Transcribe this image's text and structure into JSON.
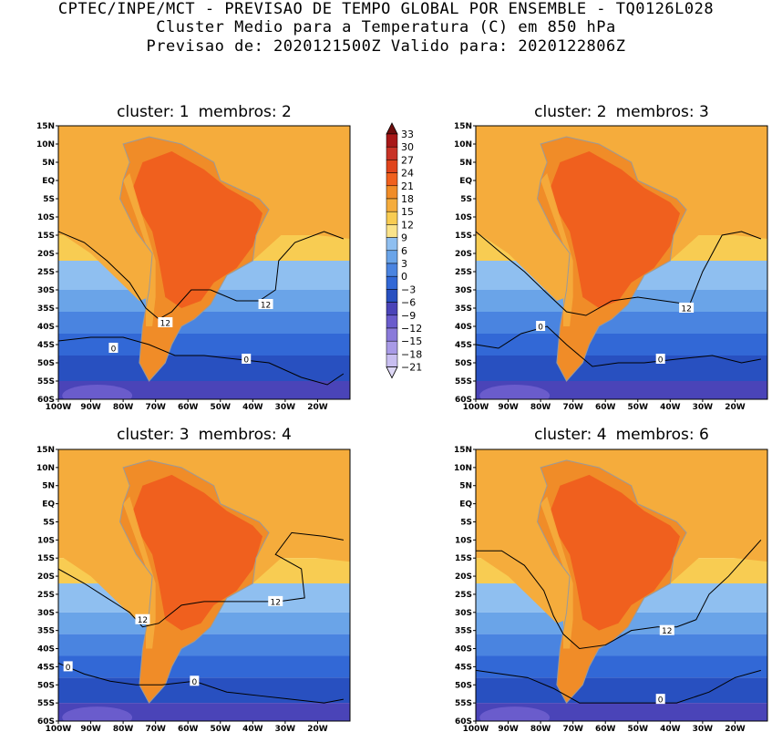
{
  "header": {
    "line1": "CPTEC/INPE/MCT - PREVISAO DE TEMPO GLOBAL POR ENSEMBLE - TQ0126L028",
    "line2": "Cluster Medio para a Temperatura (C) em 850 hPa",
    "line3": "Previsao de: 2020121500Z   Valido para: 2020122806Z"
  },
  "chart_data": {
    "type": "heatmap",
    "variable": "Temperatura (C) em 850 hPa",
    "xlim": [
      -100,
      -10
    ],
    "ylim": [
      -60,
      15
    ],
    "x_ticks": [
      {
        "value": -100,
        "label": "100W"
      },
      {
        "value": -90,
        "label": "90W"
      },
      {
        "value": -80,
        "label": "80W"
      },
      {
        "value": -70,
        "label": "70W"
      },
      {
        "value": -60,
        "label": "60W"
      },
      {
        "value": -50,
        "label": "50W"
      },
      {
        "value": -40,
        "label": "40W"
      },
      {
        "value": -30,
        "label": "30W"
      },
      {
        "value": -20,
        "label": "20W"
      }
    ],
    "y_ticks": [
      {
        "value": 15,
        "label": "15N"
      },
      {
        "value": 10,
        "label": "10N"
      },
      {
        "value": 5,
        "label": "5N"
      },
      {
        "value": 0,
        "label": "EQ"
      },
      {
        "value": -5,
        "label": "5S"
      },
      {
        "value": -10,
        "label": "10S"
      },
      {
        "value": -15,
        "label": "15S"
      },
      {
        "value": -20,
        "label": "20S"
      },
      {
        "value": -25,
        "label": "25S"
      },
      {
        "value": -30,
        "label": "30S"
      },
      {
        "value": -35,
        "label": "35S"
      },
      {
        "value": -40,
        "label": "40S"
      },
      {
        "value": -45,
        "label": "45S"
      },
      {
        "value": -50,
        "label": "50S"
      },
      {
        "value": -55,
        "label": "55S"
      },
      {
        "value": -60,
        "label": "60S"
      }
    ],
    "colorbar": {
      "labels": [
        "33",
        "30",
        "27",
        "24",
        "21",
        "18",
        "15",
        "12",
        "9",
        "6",
        "3",
        "0",
        "-3",
        "-6",
        "-9",
        "-12",
        "-15",
        "-18",
        "-21"
      ],
      "colors": [
        "#6e0d0d",
        "#a81818",
        "#c83226",
        "#e0441c",
        "#f0601e",
        "#f08c28",
        "#f5ac3c",
        "#f8cc52",
        "#fae38a",
        "#8fbff0",
        "#6aa4e8",
        "#4a84e0",
        "#3268d6",
        "#2850c0",
        "#4a44b8",
        "#6a5ccc",
        "#8a7ada",
        "#a89ae6",
        "#c8bef0",
        "#ded8f6"
      ]
    },
    "panels": [
      {
        "cluster": "1",
        "membros": "2",
        "contours": [
          {
            "level": 12,
            "label": "12",
            "points": [
              [
                -100,
                -14
              ],
              [
                -92,
                -17
              ],
              [
                -85,
                -22
              ],
              [
                -78,
                -28
              ],
              [
                -73,
                -35
              ],
              [
                -69,
                -38
              ],
              [
                -65,
                -36
              ],
              [
                -59,
                -30
              ],
              [
                -53,
                -30
              ],
              [
                -45,
                -33
              ],
              [
                -38,
                -33
              ],
              [
                -33,
                -30
              ],
              [
                -32,
                -22
              ],
              [
                -27,
                -17
              ],
              [
                -18,
                -14
              ],
              [
                -12,
                -16
              ]
            ]
          },
          {
            "level": 0,
            "label": "0",
            "points": [
              [
                -100,
                -44
              ],
              [
                -90,
                -43
              ],
              [
                -80,
                -43
              ],
              [
                -72,
                -45
              ],
              [
                -64,
                -48
              ],
              [
                -55,
                -48
              ],
              [
                -45,
                -49
              ],
              [
                -35,
                -50
              ],
              [
                -25,
                -54
              ],
              [
                -17,
                -56
              ],
              [
                -12,
                -53
              ]
            ]
          }
        ],
        "labels": [
          {
            "text": "12",
            "x": -36,
            "y": -34
          },
          {
            "text": "12",
            "x": -67,
            "y": -39
          },
          {
            "text": "0",
            "x": -83,
            "y": -46
          },
          {
            "text": "0",
            "x": -42,
            "y": -49
          }
        ]
      },
      {
        "cluster": "2",
        "membros": "3",
        "contours": [
          {
            "level": 12,
            "label": "12",
            "points": [
              [
                -100,
                -14
              ],
              [
                -92,
                -20
              ],
              [
                -85,
                -25
              ],
              [
                -78,
                -31
              ],
              [
                -72,
                -36
              ],
              [
                -66,
                -37
              ],
              [
                -58,
                -33
              ],
              [
                -50,
                -32
              ],
              [
                -42,
                -33
              ],
              [
                -34,
                -34
              ],
              [
                -30,
                -25
              ],
              [
                -24,
                -15
              ],
              [
                -18,
                -14
              ],
              [
                -12,
                -16
              ]
            ]
          },
          {
            "level": 0,
            "label": "0",
            "points": [
              [
                -100,
                -45
              ],
              [
                -93,
                -46
              ],
              [
                -86,
                -42
              ],
              [
                -78,
                -40
              ],
              [
                -72,
                -45
              ],
              [
                -64,
                -51
              ],
              [
                -56,
                -50
              ],
              [
                -48,
                -50
              ],
              [
                -38,
                -49
              ],
              [
                -27,
                -48
              ],
              [
                -18,
                -50
              ],
              [
                -12,
                -49
              ]
            ]
          }
        ],
        "labels": [
          {
            "text": "12",
            "x": -35,
            "y": -35
          },
          {
            "text": "0",
            "x": -80,
            "y": -40
          },
          {
            "text": "0",
            "x": -43,
            "y": -49
          }
        ]
      },
      {
        "cluster": "3",
        "membros": "4",
        "contours": [
          {
            "level": 12,
            "label": "12",
            "points": [
              [
                -100,
                -18
              ],
              [
                -92,
                -22
              ],
              [
                -85,
                -26
              ],
              [
                -78,
                -30
              ],
              [
                -74,
                -34
              ],
              [
                -69,
                -33
              ],
              [
                -62,
                -28
              ],
              [
                -55,
                -27
              ],
              [
                -45,
                -27
              ],
              [
                -32,
                -27
              ],
              [
                -24,
                -26
              ],
              [
                -25,
                -18
              ],
              [
                -33,
                -14
              ],
              [
                -28,
                -8
              ],
              [
                -18,
                -9
              ],
              [
                -12,
                -10
              ]
            ]
          },
          {
            "level": 0,
            "label": "0",
            "points": [
              [
                -100,
                -44
              ],
              [
                -92,
                -47
              ],
              [
                -84,
                -49
              ],
              [
                -76,
                -50
              ],
              [
                -68,
                -50
              ],
              [
                -58,
                -49
              ],
              [
                -48,
                -52
              ],
              [
                -38,
                -53
              ],
              [
                -28,
                -54
              ],
              [
                -18,
                -55
              ],
              [
                -12,
                -54
              ]
            ]
          }
        ],
        "labels": [
          {
            "text": "12",
            "x": -33,
            "y": -27
          },
          {
            "text": "12",
            "x": -74,
            "y": -32
          },
          {
            "text": "0",
            "x": -97,
            "y": -45
          },
          {
            "text": "0",
            "x": -58,
            "y": -49
          }
        ]
      },
      {
        "cluster": "4",
        "membros": "6",
        "contours": [
          {
            "level": 12,
            "label": "12",
            "points": [
              [
                -100,
                -13
              ],
              [
                -92,
                -13
              ],
              [
                -85,
                -17
              ],
              [
                -79,
                -24
              ],
              [
                -76,
                -31
              ],
              [
                -73,
                -36
              ],
              [
                -68,
                -40
              ],
              [
                -60,
                -39
              ],
              [
                -52,
                -35
              ],
              [
                -44,
                -34
              ],
              [
                -38,
                -34
              ],
              [
                -32,
                -32
              ],
              [
                -28,
                -25
              ],
              [
                -22,
                -20
              ],
              [
                -15,
                -13
              ],
              [
                -12,
                -10
              ]
            ]
          },
          {
            "level": 0,
            "label": "0",
            "points": [
              [
                -100,
                -46
              ],
              [
                -92,
                -47
              ],
              [
                -84,
                -48
              ],
              [
                -76,
                -51
              ],
              [
                -68,
                -55
              ],
              [
                -58,
                -55
              ],
              [
                -48,
                -55
              ],
              [
                -38,
                -55
              ],
              [
                -28,
                -52
              ],
              [
                -20,
                -48
              ],
              [
                -12,
                -46
              ]
            ]
          }
        ],
        "labels": [
          {
            "text": "12",
            "x": -41,
            "y": -35
          },
          {
            "text": "0",
            "x": -43,
            "y": -54
          }
        ]
      }
    ]
  },
  "panel_titles": [
    {
      "cluster_text": "cluster: 1",
      "membros_text": "membros: 2"
    },
    {
      "cluster_text": "cluster: 2",
      "membros_text": "membros: 3"
    },
    {
      "cluster_text": "cluster: 3",
      "membros_text": "membros: 4"
    },
    {
      "cluster_text": "cluster: 4",
      "membros_text": "membros: 6"
    }
  ]
}
